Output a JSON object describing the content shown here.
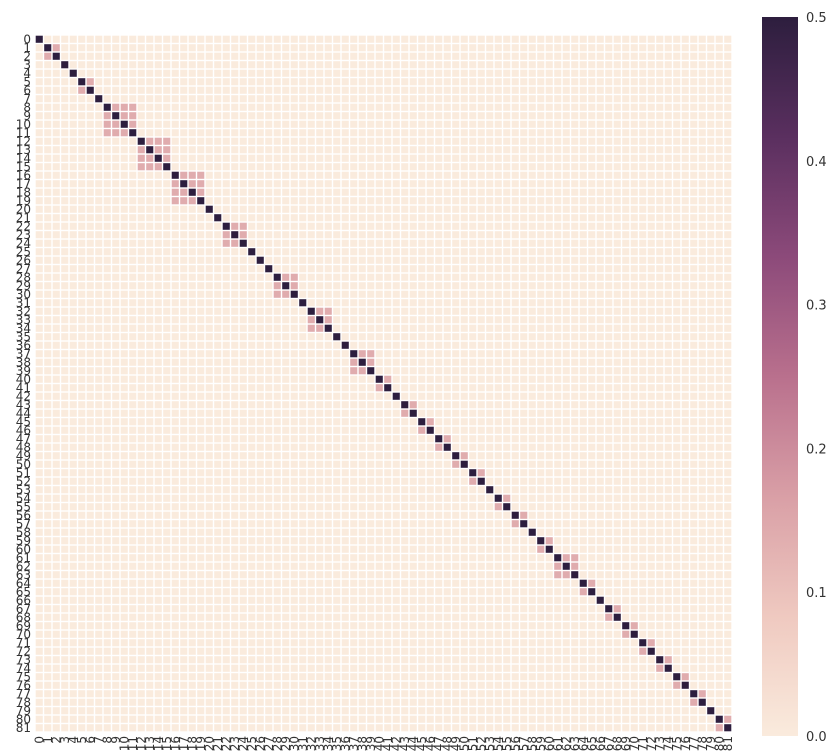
{
  "chart_data": {
    "type": "heatmap",
    "title": "",
    "xlabel": "",
    "ylabel": "",
    "size": 82,
    "x_ticks": [
      "0",
      "1",
      "2",
      "3",
      "4",
      "5",
      "6",
      "7",
      "8",
      "9",
      "10",
      "11",
      "12",
      "13",
      "14",
      "15",
      "16",
      "17",
      "18",
      "19",
      "20",
      "21",
      "22",
      "23",
      "24",
      "25",
      "26",
      "27",
      "28",
      "29",
      "30",
      "31",
      "32",
      "33",
      "34",
      "35",
      "36",
      "37",
      "38",
      "39",
      "40",
      "41",
      "42",
      "43",
      "44",
      "45",
      "46",
      "47",
      "48",
      "49",
      "50",
      "51",
      "52",
      "53",
      "54",
      "55",
      "56",
      "57",
      "58",
      "59",
      "60",
      "61",
      "62",
      "63",
      "64",
      "65",
      "66",
      "67",
      "68",
      "69",
      "70",
      "71",
      "72",
      "73",
      "74",
      "75",
      "76",
      "77",
      "78",
      "79",
      "80",
      "81"
    ],
    "y_ticks": [
      "0",
      "1",
      "2",
      "3",
      "4",
      "5",
      "6",
      "7",
      "8",
      "9",
      "10",
      "11",
      "12",
      "13",
      "14",
      "15",
      "16",
      "17",
      "18",
      "19",
      "20",
      "21",
      "22",
      "23",
      "24",
      "25",
      "26",
      "27",
      "28",
      "29",
      "30",
      "31",
      "32",
      "33",
      "34",
      "35",
      "36",
      "37",
      "38",
      "39",
      "40",
      "41",
      "42",
      "43",
      "44",
      "45",
      "46",
      "47",
      "48",
      "49",
      "50",
      "51",
      "52",
      "53",
      "54",
      "55",
      "56",
      "57",
      "58",
      "59",
      "60",
      "61",
      "62",
      "63",
      "64",
      "65",
      "66",
      "67",
      "68",
      "69",
      "70",
      "71",
      "72",
      "73",
      "74",
      "75",
      "76",
      "77",
      "78",
      "79",
      "80",
      "81"
    ],
    "blocks": [
      [
        0,
        0
      ],
      [
        1,
        2
      ],
      [
        3,
        3
      ],
      [
        4,
        4
      ],
      [
        5,
        6
      ],
      [
        7,
        7
      ],
      [
        8,
        11
      ],
      [
        12,
        15
      ],
      [
        16,
        19
      ],
      [
        20,
        20
      ],
      [
        21,
        21
      ],
      [
        22,
        24
      ],
      [
        25,
        25
      ],
      [
        26,
        26
      ],
      [
        27,
        27
      ],
      [
        28,
        30
      ],
      [
        31,
        31
      ],
      [
        32,
        34
      ],
      [
        35,
        35
      ],
      [
        36,
        36
      ],
      [
        37,
        39
      ],
      [
        40,
        41
      ],
      [
        42,
        42
      ],
      [
        43,
        44
      ],
      [
        45,
        46
      ],
      [
        47,
        48
      ],
      [
        49,
        50
      ],
      [
        51,
        52
      ],
      [
        53,
        53
      ],
      [
        54,
        55
      ],
      [
        56,
        57
      ],
      [
        58,
        58
      ],
      [
        59,
        60
      ],
      [
        61,
        63
      ],
      [
        64,
        65
      ],
      [
        66,
        66
      ],
      [
        67,
        68
      ],
      [
        69,
        70
      ],
      [
        71,
        72
      ],
      [
        73,
        74
      ],
      [
        75,
        76
      ],
      [
        77,
        78
      ],
      [
        79,
        79
      ],
      [
        80,
        81
      ]
    ],
    "diagonal_value": 0.5,
    "block_offdiagonal_value": 0.14,
    "background_value": 0.0,
    "colorbar": {
      "min": 0.0,
      "max": 0.5,
      "ticks": [
        "0.0",
        "0.1",
        "0.2",
        "0.3",
        "0.4",
        "0.5"
      ],
      "tick_values": [
        0.0,
        0.1,
        0.2,
        0.3,
        0.4,
        0.5
      ]
    },
    "colormap": [
      "#faebdd",
      "#efc9c0",
      "#d99fa6",
      "#b9708d",
      "#8c4a7a",
      "#5a2f5f",
      "#2d1e3e"
    ],
    "grid_line_color": "#ffffff"
  }
}
